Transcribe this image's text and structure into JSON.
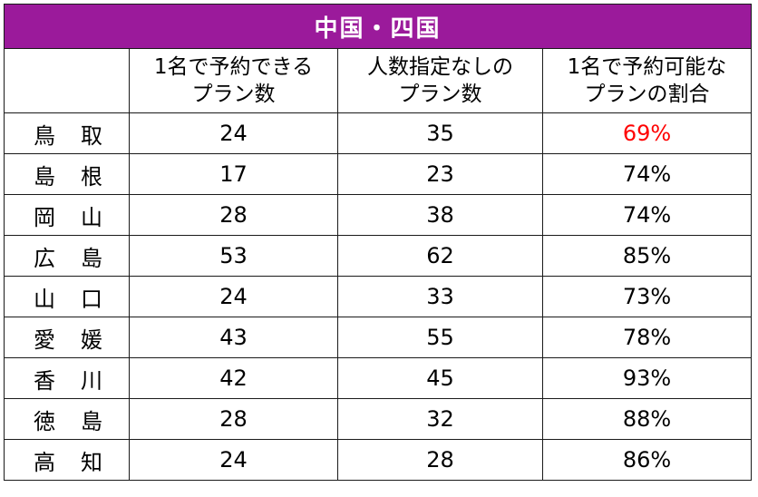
{
  "table": {
    "title": "中国・四国",
    "headers": {
      "col1": "",
      "col2_line1": "1名で予約できる",
      "col2_line2": "プラン数",
      "col3_line1": "人数指定なしの",
      "col3_line2": "プラン数",
      "col4_line1": "1名で予約可能な",
      "col4_line2": "プランの割合"
    },
    "rows": [
      {
        "pref_a": "鳥",
        "pref_b": "取",
        "solo": "24",
        "any": "35",
        "ratio": "69%"
      },
      {
        "pref_a": "島",
        "pref_b": "根",
        "solo": "17",
        "any": "23",
        "ratio": "74%"
      },
      {
        "pref_a": "岡",
        "pref_b": "山",
        "solo": "28",
        "any": "38",
        "ratio": "74%"
      },
      {
        "pref_a": "広",
        "pref_b": "島",
        "solo": "53",
        "any": "62",
        "ratio": "85%"
      },
      {
        "pref_a": "山",
        "pref_b": "口",
        "solo": "24",
        "any": "33",
        "ratio": "73%"
      },
      {
        "pref_a": "愛",
        "pref_b": "媛",
        "solo": "43",
        "any": "55",
        "ratio": "78%"
      },
      {
        "pref_a": "香",
        "pref_b": "川",
        "solo": "42",
        "any": "45",
        "ratio": "93%"
      },
      {
        "pref_a": "徳",
        "pref_b": "島",
        "solo": "28",
        "any": "32",
        "ratio": "88%"
      },
      {
        "pref_a": "高",
        "pref_b": "知",
        "solo": "24",
        "any": "28",
        "ratio": "86%"
      }
    ],
    "highlight_color": "#ff0000",
    "title_bg_color": "#9b1a9b"
  }
}
